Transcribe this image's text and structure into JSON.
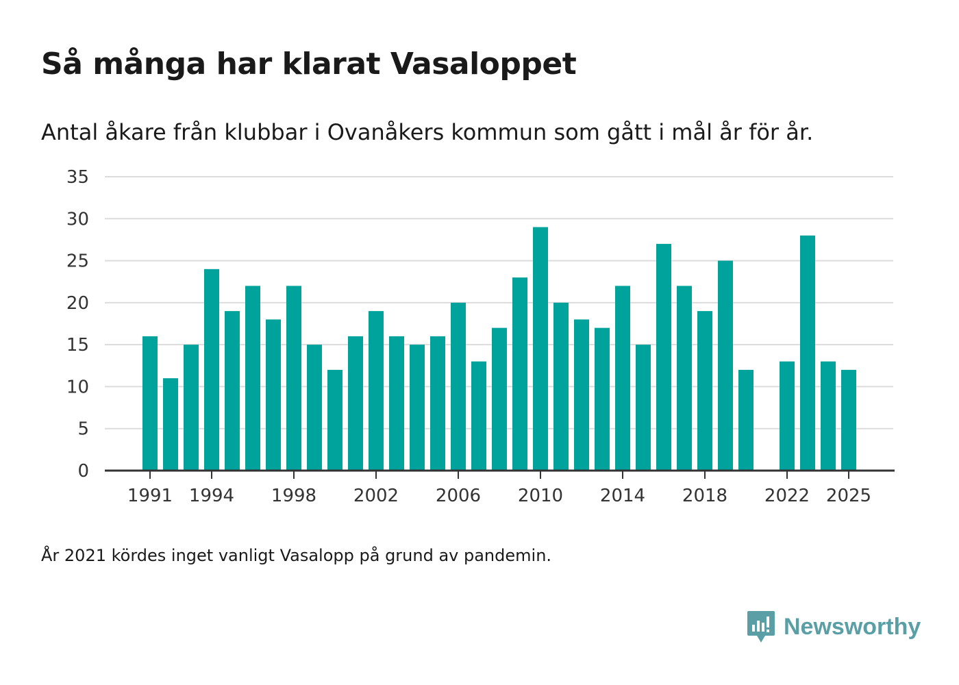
{
  "title": "Så många har klarat Vasaloppet",
  "subtitle": "Antal åkare från klubbar i Ovanåkers kommun som gått i mål år för år.",
  "note": "År 2021 kördes inget vanligt Vasalopp på grund av pandemin.",
  "brand": {
    "name": "Newsworthy",
    "icon": "newsworthy-logo-icon"
  },
  "colors": {
    "bar": "#00a39b",
    "grid": "#dcdcdc",
    "axis": "#333333",
    "text": "#333333",
    "brand": "#5a9ea6"
  },
  "chart_data": {
    "type": "bar",
    "title": "Så många har klarat Vasaloppet",
    "subtitle": "Antal åkare från klubbar i Ovanåkers kommun som gått i mål år för år.",
    "xlabel": "",
    "ylabel": "",
    "ylim": [
      0,
      35
    ],
    "yticks": [
      0,
      5,
      10,
      15,
      20,
      25,
      30,
      35
    ],
    "xticks": [
      1991,
      1994,
      1998,
      2002,
      2006,
      2010,
      2014,
      2018,
      2022,
      2025
    ],
    "grid": true,
    "categories": [
      1991,
      1992,
      1993,
      1994,
      1995,
      1996,
      1997,
      1998,
      1999,
      2000,
      2001,
      2002,
      2003,
      2004,
      2005,
      2006,
      2007,
      2008,
      2009,
      2010,
      2011,
      2012,
      2013,
      2014,
      2015,
      2016,
      2017,
      2018,
      2019,
      2020,
      2021,
      2022,
      2023,
      2024,
      2025
    ],
    "values": [
      16,
      11,
      15,
      24,
      19,
      22,
      18,
      22,
      15,
      12,
      16,
      19,
      16,
      15,
      16,
      20,
      13,
      17,
      23,
      29,
      20,
      18,
      17,
      22,
      15,
      27,
      22,
      19,
      25,
      12,
      null,
      13,
      28,
      13,
      12
    ]
  }
}
